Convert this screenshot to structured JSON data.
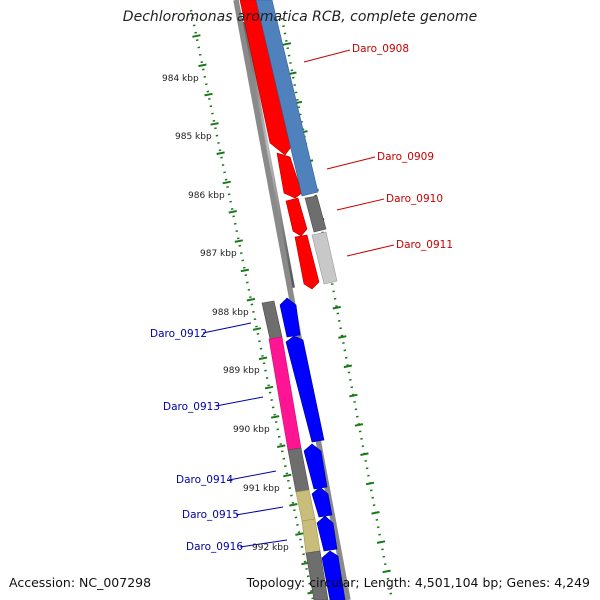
{
  "title": "Dechloromonas aromatica RCB, complete genome",
  "footer": {
    "accession": "Accession: NC_007298",
    "summary": "Topology: circular; Length: 4,501,104 bp; Genes: 4,249"
  },
  "ticks": [
    "984 kbp",
    "985 kbp",
    "986 kbp",
    "987 kbp",
    "988 kbp",
    "989 kbp",
    "990 kbp",
    "991 kbp",
    "992 kbp"
  ],
  "genes_red": [
    {
      "label": "Daro_0908"
    },
    {
      "label": "Daro_0909"
    },
    {
      "label": "Daro_0910"
    },
    {
      "label": "Daro_0911"
    }
  ],
  "genes_blue": [
    {
      "label": "Daro_0912"
    },
    {
      "label": "Daro_0913"
    },
    {
      "label": "Daro_0914"
    },
    {
      "label": "Daro_0915"
    },
    {
      "label": "Daro_0916"
    }
  ],
  "colors": {
    "red": "#ff0000",
    "blue": "#0000ff",
    "steel": "#4f81bd",
    "gray": "#6e6e6e",
    "light_gray": "#c8c8c8",
    "pink": "#ff1493",
    "khaki": "#c8bd7a",
    "tick": "#1a7a1a",
    "red_label": "#cc0000",
    "blue_label": "#0000aa"
  }
}
